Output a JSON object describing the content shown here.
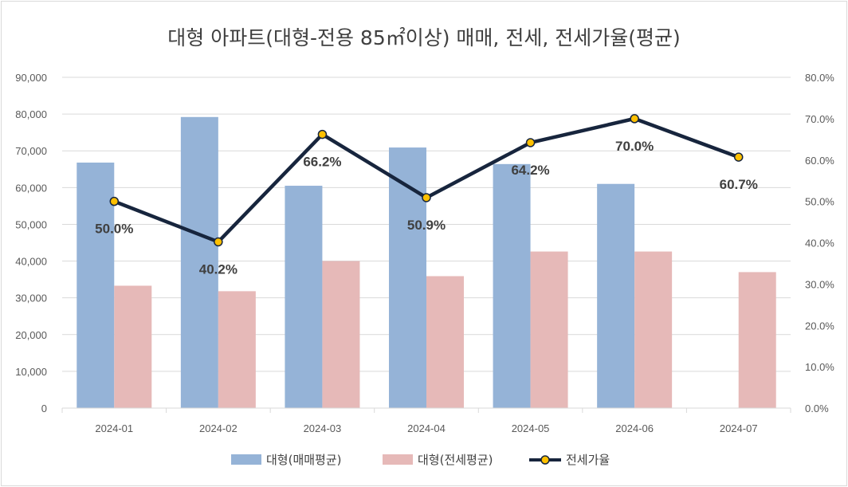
{
  "chart_data": {
    "type": "bar",
    "title": "대형 아파트(대형-전용 85㎡이상) 매매, 전세, 전세가율(평균)",
    "categories": [
      "2024-01",
      "2024-02",
      "2024-03",
      "2024-04",
      "2024-05",
      "2024-06",
      "2024-07"
    ],
    "series": [
      {
        "name": "대형(매매평균)",
        "type": "bar",
        "axis": "left",
        "color": "#95b3d7",
        "values": [
          66800,
          79200,
          60500,
          70900,
          66400,
          61000,
          null
        ]
      },
      {
        "name": "대형(전세평균)",
        "type": "bar",
        "axis": "left",
        "color": "#e6b9b8",
        "values": [
          33300,
          31800,
          40000,
          35900,
          42600,
          42600,
          37000
        ]
      },
      {
        "name": "전세가율",
        "type": "line",
        "axis": "right",
        "color": "#17253d",
        "marker_color": "#ffc000",
        "values": [
          50.0,
          40.2,
          66.2,
          50.9,
          64.2,
          70.0,
          60.7
        ],
        "labels": [
          "50.0%",
          "40.2%",
          "66.2%",
          "50.9%",
          "64.2%",
          "70.0%",
          "60.7%"
        ]
      }
    ],
    "y_left": {
      "range": [
        0,
        90000
      ],
      "ticks": [
        "0",
        "10,000",
        "20,000",
        "30,000",
        "40,000",
        "50,000",
        "60,000",
        "70,000",
        "80,000",
        "90,000"
      ]
    },
    "y_right": {
      "range": [
        0,
        80
      ],
      "ticks": [
        "0.0%",
        "10.0%",
        "20.0%",
        "30.0%",
        "40.0%",
        "50.0%",
        "60.0%",
        "70.0%",
        "80.0%"
      ]
    },
    "grid": true,
    "legend_position": "bottom"
  }
}
